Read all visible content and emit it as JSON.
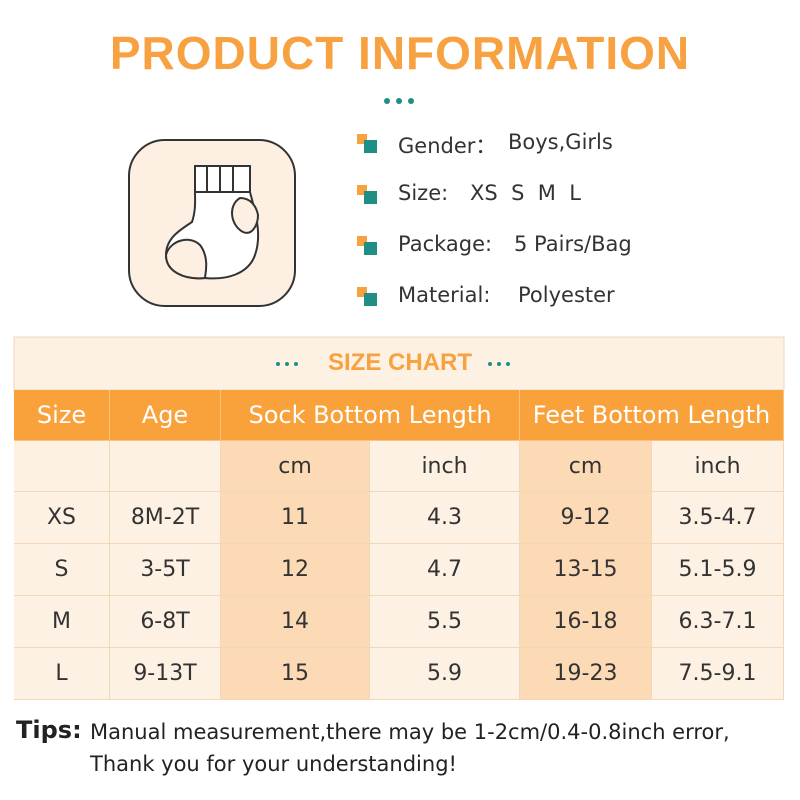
{
  "title": "PRODUCT INFORMATION",
  "specs": [
    {
      "label": "Gender：",
      "value": "Boys,Girls"
    },
    {
      "label": "Size:",
      "value": "XS  S  M  L"
    },
    {
      "label": "Package:",
      "value": "5 Pairs/Bag"
    },
    {
      "label": "Material:",
      "value": "Polyester"
    }
  ],
  "size_chart": {
    "title": "SIZE CHART",
    "headers": [
      "Size",
      "Age",
      "Sock Bottom Length",
      "Feet Bottom Length"
    ],
    "units": [
      "cm",
      "inch",
      "cm",
      "inch"
    ],
    "rows": [
      [
        "XS",
        "8M-2T",
        "11",
        "4.3",
        "9-12",
        "3.5-4.7"
      ],
      [
        "S",
        "3-5T",
        "12",
        "4.7",
        "13-15",
        "5.1-5.9"
      ],
      [
        "M",
        "6-8T",
        "14",
        "5.5",
        "16-18",
        "6.3-7.1"
      ],
      [
        "L",
        "9-13T",
        "15",
        "5.9",
        "19-23",
        "7.5-9.1"
      ]
    ]
  },
  "tips": {
    "label": "Tips:",
    "lines": [
      "Manual measurement,there may be 1-2cm/0.4-0.8inch error,",
      "Thank you for your understanding!"
    ]
  }
}
